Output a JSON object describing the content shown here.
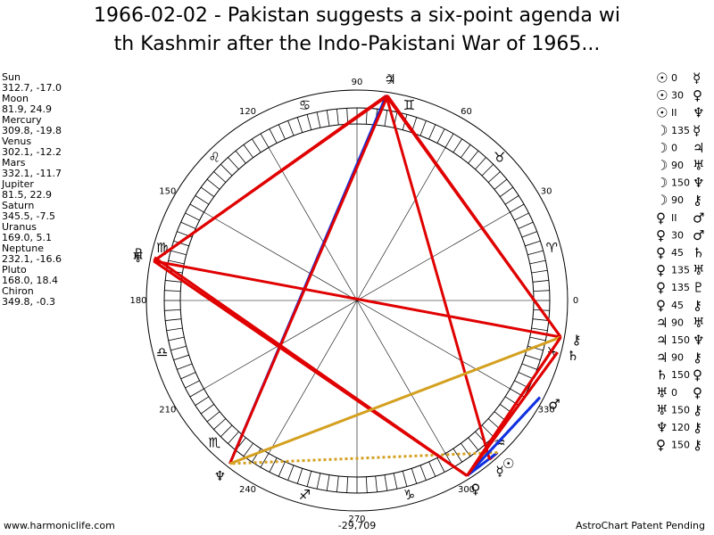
{
  "header": {
    "title_line1": "1966-02-02 - Pakistan suggests a six-point agenda wi",
    "title_line2": "th Kashmir after the Indo-Pakistani War of 1965..."
  },
  "planets": [
    {
      "name": "Sun",
      "coords": "312.7, -17.0",
      "glyph": "☉"
    },
    {
      "name": "Moon",
      "coords": "81.9, 24.9",
      "glyph": "☽"
    },
    {
      "name": "Mercury",
      "coords": "309.8, -19.8",
      "glyph": "☿"
    },
    {
      "name": "Venus",
      "coords": "302.1, -12.2",
      "glyph": "♀"
    },
    {
      "name": "Mars",
      "coords": "332.1, -11.7",
      "glyph": "♂"
    },
    {
      "name": "Jupiter",
      "coords": "81.5, 22.9",
      "glyph": "♃"
    },
    {
      "name": "Saturn",
      "coords": "345.5, -7.5",
      "glyph": "♄"
    },
    {
      "name": "Uranus",
      "coords": "169.0, 5.1",
      "glyph": "♅"
    },
    {
      "name": "Neptune",
      "coords": "232.1, -16.6",
      "glyph": "♆"
    },
    {
      "name": "Pluto",
      "coords": "168.0, 18.4",
      "glyph": "♇"
    },
    {
      "name": "Chiron",
      "coords": "349.8, -0.3",
      "glyph": "⚷"
    }
  ],
  "aspects": [
    {
      "a": "☉",
      "aspect": "0",
      "b": "☿",
      "color": "#e00000"
    },
    {
      "a": "☉",
      "aspect": "30",
      "b": "♀",
      "color": "#1030e0"
    },
    {
      "a": "☉",
      "aspect": "II",
      "b": "♆",
      "color": "#d4a020",
      "dotted": true
    },
    {
      "a": "☽",
      "aspect": "135",
      "b": "☿",
      "color": "#e00000"
    },
    {
      "a": "☽",
      "aspect": "0",
      "b": "♃",
      "color": "#e00000"
    },
    {
      "a": "☽",
      "aspect": "90",
      "b": "♅",
      "color": "#e00000"
    },
    {
      "a": "☽",
      "aspect": "150",
      "b": "♆",
      "color": "#1030e0"
    },
    {
      "a": "☽",
      "aspect": "90",
      "b": "⚷",
      "color": "#e00000"
    },
    {
      "a": "♀",
      "aspect": "II",
      "b": "♂",
      "color": "#1030e0",
      "dotted": true
    },
    {
      "a": "♀",
      "aspect": "30",
      "b": "♂",
      "color": "#1030e0"
    },
    {
      "a": "♀",
      "aspect": "45",
      "b": "♄",
      "color": "#e00000"
    },
    {
      "a": "♀",
      "aspect": "135",
      "b": "♅",
      "color": "#e00000"
    },
    {
      "a": "♀",
      "aspect": "135",
      "b": "♇",
      "color": "#e00000"
    },
    {
      "a": "♀",
      "aspect": "45",
      "b": "⚷",
      "color": "#e00000"
    },
    {
      "a": "♃",
      "aspect": "90",
      "b": "♅",
      "color": "#e00000"
    },
    {
      "a": "♃",
      "aspect": "150",
      "b": "♆",
      "color": "#e00000"
    },
    {
      "a": "♃",
      "aspect": "90",
      "b": "⚷",
      "color": "#e00000"
    },
    {
      "a": "♄",
      "aspect": "150",
      "b": "♀",
      "color": "#e00000"
    },
    {
      "a": "♅",
      "aspect": "0",
      "b": "♀",
      "color": "#e00000"
    },
    {
      "a": "♅",
      "aspect": "150",
      "b": "⚷",
      "color": "#e00000"
    },
    {
      "a": "♆",
      "aspect": "120",
      "b": "⚷",
      "color": "#d4a020"
    },
    {
      "a": "♀",
      "aspect": "150",
      "b": "⚷",
      "color": "#e00000"
    }
  ],
  "wheel": {
    "degree_labels": [
      0,
      30,
      60,
      90,
      120,
      150,
      180,
      210,
      240,
      270,
      300,
      330
    ],
    "signs": [
      "♈",
      "♉",
      "♊",
      "♋",
      "♌",
      "♍",
      "♎",
      "♏",
      "♐",
      "♑",
      "♒",
      "♓"
    ],
    "center_label": "-29,709"
  },
  "footer": {
    "left": "www.harmoniclife.com",
    "right": "AstroChart Patent Pending"
  }
}
